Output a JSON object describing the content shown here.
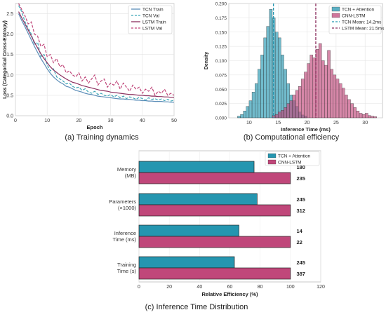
{
  "captions": {
    "a": "(a) Training dynamics",
    "b": "(b) Computational efficiency",
    "c": "(c) Inference Time Distribution"
  },
  "chart_data": [
    {
      "type": "line",
      "xlabel": "Epoch",
      "ylabel": "Loss (Categorical Cross-Entropy)",
      "xlim": [
        0,
        50
      ],
      "ylim": [
        0,
        2.75
      ],
      "xticks": [
        0,
        10,
        20,
        30,
        40,
        50
      ],
      "yticks": [
        0.0,
        0.5,
        1.0,
        1.5,
        2.0,
        2.5
      ],
      "grid": true,
      "legend": "top-right",
      "x": [
        1,
        2,
        3,
        4,
        5,
        6,
        7,
        8,
        9,
        10,
        11,
        12,
        13,
        14,
        15,
        16,
        17,
        18,
        19,
        20,
        21,
        22,
        23,
        24,
        25,
        26,
        27,
        28,
        29,
        30,
        31,
        32,
        33,
        34,
        35,
        36,
        37,
        38,
        39,
        40,
        41,
        42,
        43,
        44,
        45,
        46,
        47,
        48,
        49,
        50
      ],
      "series": [
        {
          "name": "TCN Train",
          "color": "#5b8db8",
          "dash": false,
          "values": [
            2.5,
            2.33,
            2.18,
            2.02,
            1.86,
            1.7,
            1.55,
            1.4,
            1.28,
            1.15,
            1.04,
            0.95,
            0.88,
            0.82,
            0.78,
            0.72,
            0.7,
            0.66,
            0.62,
            0.6,
            0.58,
            0.55,
            0.53,
            0.52,
            0.5,
            0.48,
            0.47,
            0.46,
            0.45,
            0.44,
            0.43,
            0.42,
            0.41,
            0.41,
            0.4,
            0.4,
            0.39,
            0.38,
            0.38,
            0.37,
            0.37,
            0.36,
            0.36,
            0.35,
            0.35,
            0.35,
            0.34,
            0.34,
            0.33,
            0.33
          ]
        },
        {
          "name": "TCN Val",
          "color": "#3fa6b6",
          "dash": true,
          "values": [
            2.7,
            2.55,
            2.3,
            2.15,
            2.0,
            1.75,
            1.8,
            1.45,
            1.5,
            1.25,
            1.1,
            1.15,
            0.95,
            0.9,
            0.85,
            0.78,
            0.8,
            0.72,
            0.68,
            0.7,
            0.62,
            0.66,
            0.58,
            0.55,
            0.6,
            0.52,
            0.55,
            0.5,
            0.48,
            0.52,
            0.46,
            0.5,
            0.44,
            0.48,
            0.42,
            0.46,
            0.44,
            0.4,
            0.45,
            0.42,
            0.38,
            0.44,
            0.4,
            0.42,
            0.38,
            0.41,
            0.37,
            0.4,
            0.36,
            0.38
          ]
        },
        {
          "name": "LSTM Train",
          "color": "#8b2f5e",
          "dash": false,
          "values": [
            2.55,
            2.4,
            2.25,
            2.1,
            1.95,
            1.8,
            1.66,
            1.52,
            1.4,
            1.3,
            1.2,
            1.12,
            1.06,
            1.0,
            0.95,
            0.9,
            0.86,
            0.82,
            0.8,
            0.77,
            0.74,
            0.72,
            0.7,
            0.68,
            0.66,
            0.64,
            0.62,
            0.61,
            0.6,
            0.58,
            0.57,
            0.56,
            0.55,
            0.54,
            0.53,
            0.52,
            0.52,
            0.51,
            0.5,
            0.5,
            0.49,
            0.49,
            0.48,
            0.48,
            0.47,
            0.47,
            0.46,
            0.46,
            0.45,
            0.45
          ]
        },
        {
          "name": "LSTM Val",
          "color": "#c0477a",
          "dash": true,
          "values": [
            2.75,
            2.6,
            2.45,
            2.25,
            2.3,
            2.0,
            1.95,
            1.7,
            1.75,
            1.45,
            1.5,
            1.3,
            1.4,
            1.2,
            1.25,
            1.05,
            1.1,
            1.0,
            0.95,
            1.05,
            0.85,
            0.95,
            0.8,
            0.9,
            1.0,
            0.75,
            0.85,
            0.9,
            0.7,
            0.8,
            0.75,
            0.85,
            0.65,
            0.8,
            0.7,
            0.6,
            0.75,
            0.65,
            0.7,
            0.55,
            0.65,
            0.6,
            0.7,
            0.5,
            0.6,
            0.55,
            0.65,
            0.5,
            0.55,
            0.5
          ]
        }
      ]
    },
    {
      "type": "histogram",
      "xlabel": "Inference Time (ms)",
      "ylabel": "Density",
      "xlim": [
        6.5,
        33
      ],
      "ylim": [
        0,
        0.2
      ],
      "xticks": [
        10,
        15,
        20,
        25,
        30
      ],
      "yticks": [
        0.0,
        0.025,
        0.05,
        0.075,
        0.1,
        0.125,
        0.15,
        0.175,
        0.2
      ],
      "ytick_labels": [
        "0.000",
        "0.025",
        "0.050",
        "0.075",
        "0.100",
        "0.125",
        "0.150",
        "0.175",
        "0.200"
      ],
      "grid": true,
      "legend": "top-right",
      "bin_width": 0.5,
      "series": [
        {
          "name": "TCN + Attention",
          "color": "#2596b0",
          "bin_starts": [
            8,
            8.5,
            9,
            9.5,
            10,
            10.5,
            11,
            11.5,
            12,
            12.5,
            13,
            13.5,
            14,
            14.5,
            15,
            15.5,
            16,
            16.5,
            17,
            17.5,
            18,
            18.5,
            19,
            19.5
          ],
          "values": [
            0.003,
            0.006,
            0.012,
            0.02,
            0.03,
            0.045,
            0.06,
            0.085,
            0.11,
            0.14,
            0.16,
            0.19,
            0.175,
            0.15,
            0.14,
            0.11,
            0.085,
            0.06,
            0.04,
            0.03,
            0.02,
            0.01,
            0.005,
            0.003
          ]
        },
        {
          "name": "CNN-LSTM",
          "color": "#c0477a",
          "bin_starts": [
            14,
            14.5,
            15,
            15.5,
            16,
            16.5,
            17,
            17.5,
            18,
            18.5,
            19,
            19.5,
            20,
            20.5,
            21,
            21.5,
            22,
            22.5,
            23,
            23.5,
            24,
            24.5,
            25,
            25.5,
            26,
            26.5,
            27,
            27.5,
            28,
            28.5,
            29,
            29.5,
            30,
            30.5,
            31,
            31.5
          ],
          "values": [
            0.004,
            0.006,
            0.01,
            0.013,
            0.018,
            0.025,
            0.03,
            0.04,
            0.048,
            0.055,
            0.068,
            0.08,
            0.095,
            0.11,
            0.105,
            0.12,
            0.13,
            0.1,
            0.092,
            0.118,
            0.085,
            0.075,
            0.068,
            0.06,
            0.052,
            0.04,
            0.032,
            0.025,
            0.018,
            0.012,
            0.008,
            0.006,
            0.008,
            0.004,
            0.003,
            0.002
          ]
        }
      ],
      "reference_lines": [
        {
          "name": "TCN Mean: 14.2ms",
          "value": 14.2,
          "color": "#2596b0"
        },
        {
          "name": "LSTM Mean: 21.5ms",
          "value": 21.5,
          "color": "#8b2f5e"
        }
      ]
    },
    {
      "type": "bar",
      "orientation": "horizontal",
      "xlabel": "Relative Efficiency (%)",
      "xlim": [
        0,
        120
      ],
      "xticks": [
        0,
        20,
        40,
        60,
        80,
        100,
        120
      ],
      "legend": "top-right",
      "categories": [
        {
          "line1": "Memory",
          "line2": "(MB)"
        },
        {
          "line1": "Parameters",
          "line2": "(×1000)"
        },
        {
          "line1": "Inference",
          "line2": "Time (ms)"
        },
        {
          "line1": "Training",
          "line2": "Time (s)"
        }
      ],
      "series": [
        {
          "name": "TCN + Attention",
          "color": "#2596b0",
          "values": [
            76,
            78,
            66,
            63
          ],
          "labels": [
            "180",
            "245",
            "14",
            "245"
          ]
        },
        {
          "name": "CNN-LSTM",
          "color": "#c0477a",
          "values": [
            100,
            100,
            100,
            100
          ],
          "labels": [
            "235",
            "312",
            "22",
            "387"
          ]
        }
      ]
    }
  ]
}
